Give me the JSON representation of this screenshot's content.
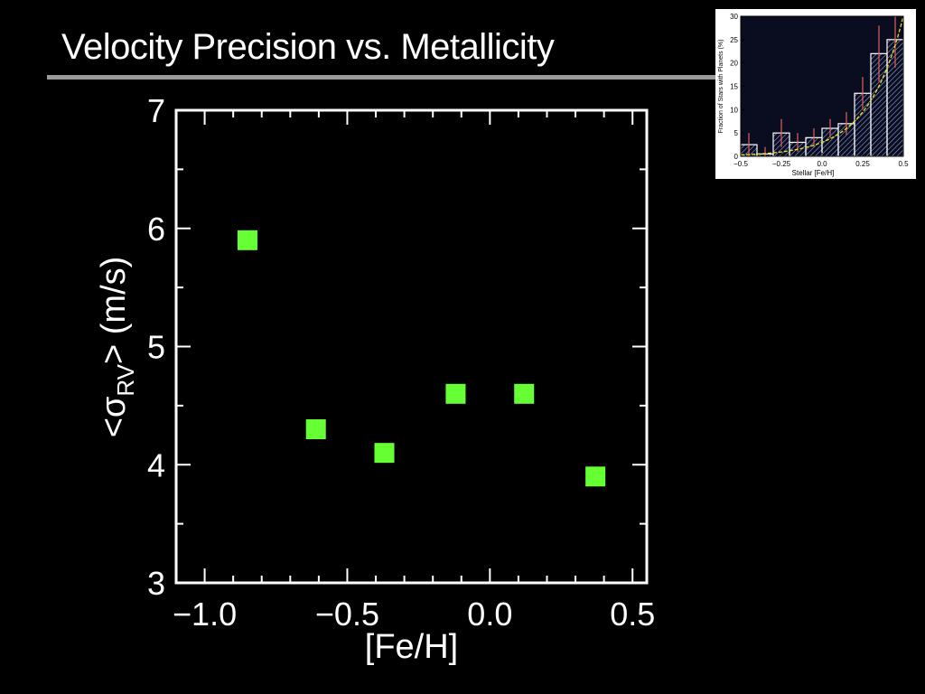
{
  "slide": {
    "title": "Velocity Precision vs. Metallicity"
  },
  "chart_data": [
    {
      "type": "scatter",
      "title": "",
      "xlabel": "[Fe/H]",
      "ylabel_prefix": "<σ",
      "ylabel_sub": "RV",
      "ylabel_suffix": ">  (m/s)",
      "xlim": [
        -1.1,
        0.55
      ],
      "ylim": [
        3,
        7
      ],
      "xticks": [
        -1.0,
        -0.5,
        0.0,
        0.5
      ],
      "xtick_labels": [
        "−1.0",
        "−0.5",
        "0.0",
        "0.5"
      ],
      "yticks": [
        3,
        4,
        5,
        6,
        7
      ],
      "ytick_labels": [
        "3",
        "4",
        "5",
        "6",
        "7"
      ],
      "marker": "square",
      "color": "#66ff33",
      "points": [
        {
          "x": -0.85,
          "y": 5.9
        },
        {
          "x": -0.61,
          "y": 4.3
        },
        {
          "x": -0.37,
          "y": 4.1
        },
        {
          "x": -0.12,
          "y": 4.6
        },
        {
          "x": 0.12,
          "y": 4.6
        },
        {
          "x": 0.37,
          "y": 3.9
        }
      ]
    },
    {
      "type": "bar",
      "title": "",
      "xlabel": "Stellar  [Fe/H]",
      "ylabel": "Fraction of Stars with Planets  (%)",
      "xlim": [
        -0.5,
        0.5
      ],
      "ylim": [
        0,
        30
      ],
      "xticks": [
        -0.5,
        -0.25,
        0.0,
        0.25,
        0.5
      ],
      "xtick_labels": [
        "−0.5",
        "−0.25",
        "0.0",
        "0.25",
        "0.5"
      ],
      "yticks": [
        0,
        5,
        10,
        15,
        20,
        25,
        30
      ],
      "ytick_labels": [
        "0",
        "5",
        "10",
        "15",
        "20",
        "25",
        "30"
      ],
      "bin_edges": [
        -0.5,
        -0.4,
        -0.3,
        -0.2,
        -0.1,
        0.0,
        0.1,
        0.2,
        0.3,
        0.4,
        0.5
      ],
      "values": [
        2.5,
        0.5,
        5,
        3,
        4,
        6,
        7,
        13.5,
        22,
        25
      ],
      "errors": [
        2.5,
        1.5,
        3,
        2,
        2,
        2,
        2.5,
        3.5,
        6,
        6
      ],
      "fit_curve": "exponential",
      "colors": {
        "bars": "#ffffff",
        "hatch": "#8fa0d8",
        "errors": "#e06060",
        "fit": "#e8e020"
      }
    }
  ]
}
